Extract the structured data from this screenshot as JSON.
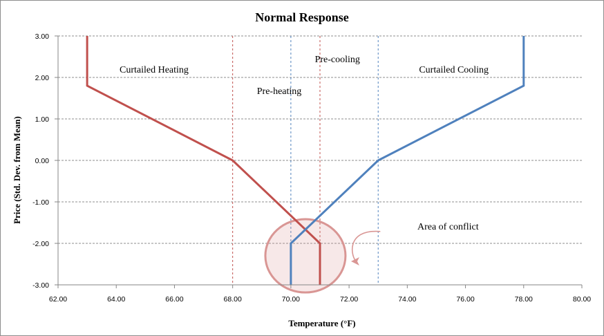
{
  "chart_data": {
    "type": "line",
    "title": "Normal Response",
    "xlabel": "Temperature (°F)",
    "ylabel": "Price (Std. Dev. from Mean)",
    "xlim": [
      62,
      80
    ],
    "ylim": [
      -3,
      3
    ],
    "x_ticks": [
      "62.00",
      "64.00",
      "66.00",
      "68.00",
      "70.00",
      "72.00",
      "74.00",
      "76.00",
      "78.00",
      "80.00"
    ],
    "y_ticks": [
      "3.00",
      "2.00",
      "1.00",
      "0.00",
      "-1.00",
      "-2.00",
      "-3.00"
    ],
    "grid": "horizontal dashed",
    "series": [
      {
        "color": "#c0504d",
        "points": [
          [
            63,
            3
          ],
          [
            63,
            1.8
          ],
          [
            68,
            0
          ],
          [
            71,
            -2
          ],
          [
            71,
            -3
          ]
        ]
      },
      {
        "color": "#4f81bd",
        "points": [
          [
            78,
            3
          ],
          [
            78,
            1.8
          ],
          [
            73,
            0
          ],
          [
            70,
            -2
          ],
          [
            70,
            -3
          ]
        ]
      }
    ],
    "vertical_lines": [
      {
        "x": 68,
        "color": "#c0504d"
      },
      {
        "x": 70,
        "color": "#4f81bd"
      },
      {
        "x": 71,
        "color": "#c0504d"
      },
      {
        "x": 73,
        "color": "#4f81bd"
      }
    ],
    "annotations": [
      {
        "text": "Curtailed Heating",
        "x": 65.3,
        "y": 2.2
      },
      {
        "text": "Pre-heating",
        "x": 69.6,
        "y": 1.68
      },
      {
        "text": "Pre-cooling",
        "x": 71.6,
        "y": 2.45
      },
      {
        "text": "Curtailed Cooling",
        "x": 75.6,
        "y": 2.2
      },
      {
        "text": "Area of conflict",
        "x": 75.4,
        "y": -1.58
      }
    ],
    "highlight": {
      "label": "Area of conflict",
      "center": [
        70.5,
        -2.3
      ],
      "color": "#d99694"
    }
  }
}
